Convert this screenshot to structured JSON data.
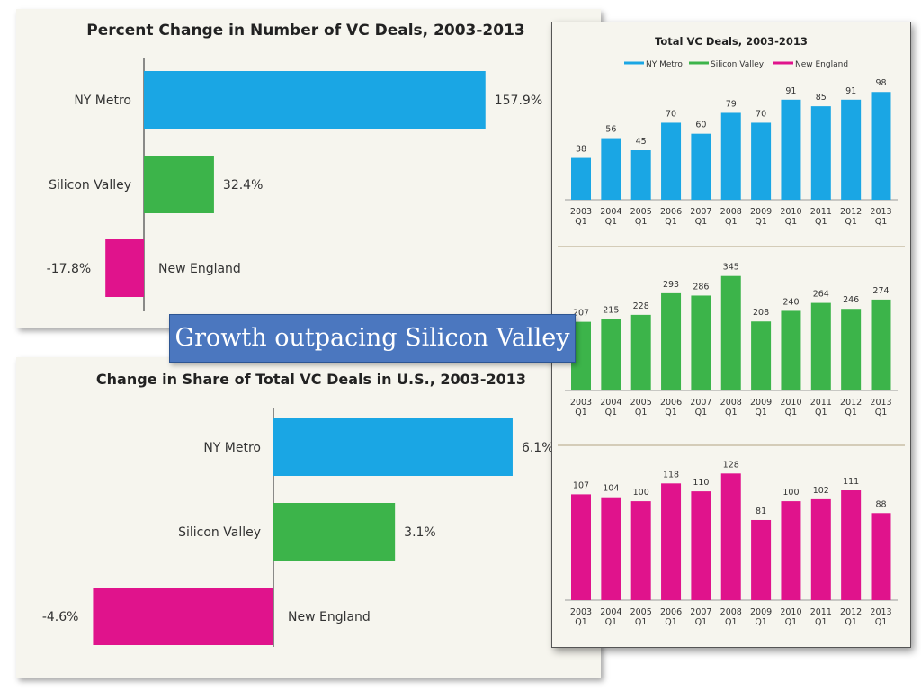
{
  "callout": "Growth outpacing Silicon Valley",
  "colors": {
    "ny": "#1aa6e4",
    "sv": "#3cb44a",
    "ne": "#e0138c"
  },
  "chart_data": [
    {
      "type": "bar",
      "orientation": "horizontal",
      "title": "Percent Change in Number of VC Deals, 2003-2013",
      "categories": [
        "NY Metro",
        "Silicon Valley",
        "New England"
      ],
      "values": [
        157.9,
        32.4,
        -17.8
      ],
      "value_labels": [
        "157.9%",
        "32.4%",
        "-17.8%"
      ],
      "colors": [
        "#1aa6e4",
        "#3cb44a",
        "#e0138c"
      ],
      "unit": "%"
    },
    {
      "type": "bar",
      "orientation": "horizontal",
      "title": "Change in Share of Total VC Deals in U.S., 2003-2013",
      "categories": [
        "NY Metro",
        "Silicon Valley",
        "New England"
      ],
      "values": [
        6.1,
        3.1,
        -4.6
      ],
      "value_labels": [
        "6.1%",
        "3.1%",
        "-4.6%"
      ],
      "colors": [
        "#1aa6e4",
        "#3cb44a",
        "#e0138c"
      ],
      "unit": "%"
    },
    {
      "type": "bar",
      "title": "Total VC Deals, 2003-2013",
      "legend": [
        "NY Metro",
        "Silicon Valley",
        "New England"
      ],
      "legend_position": "top",
      "categories": [
        "2003 Q1",
        "2004 Q1",
        "2005 Q1",
        "2006 Q1",
        "2007 Q1",
        "2008 Q1",
        "2009 Q1",
        "2010 Q1",
        "2011 Q1",
        "2012 Q1",
        "2013 Q1"
      ],
      "series": [
        {
          "name": "NY Metro",
          "color": "#1aa6e4",
          "values": [
            38,
            56,
            45,
            70,
            60,
            79,
            70,
            91,
            85,
            91,
            98
          ]
        },
        {
          "name": "Silicon Valley",
          "color": "#3cb44a",
          "values": [
            207,
            215,
            228,
            293,
            286,
            345,
            208,
            240,
            264,
            246,
            274
          ]
        },
        {
          "name": "New England",
          "color": "#e0138c",
          "values": [
            107,
            104,
            100,
            118,
            110,
            128,
            81,
            100,
            102,
            111,
            88
          ]
        }
      ]
    }
  ]
}
